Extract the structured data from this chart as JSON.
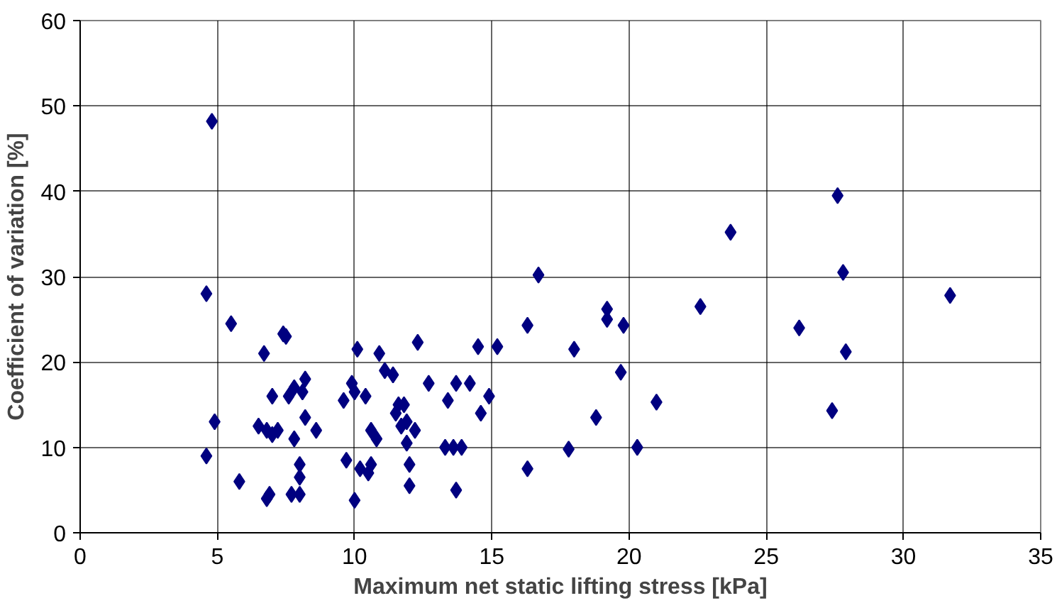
{
  "chart_data": {
    "type": "scatter",
    "xlabel": "Maximum net static lifting stress [kPa]",
    "ylabel": "Coefficient of variation [%]",
    "xlim": [
      0,
      35
    ],
    "xticks": [
      0,
      5,
      10,
      15,
      20,
      25,
      30,
      35
    ],
    "ylim": [
      0,
      60
    ],
    "yticks": [
      0,
      10,
      20,
      30,
      40,
      50,
      60
    ],
    "grid": true,
    "marker": "diamond",
    "series": [
      {
        "color": "#000080",
        "x": [
          4.6,
          4.8,
          4.6,
          4.9,
          5.5,
          5.8,
          6.5,
          6.7,
          6.8,
          6.8,
          6.9,
          7.0,
          7.0,
          7.2,
          7.4,
          7.5,
          7.6,
          7.8,
          7.8,
          7.7,
          8.0,
          8.0,
          8.0,
          8.1,
          8.2,
          8.2,
          8.6,
          9.6,
          9.7,
          9.9,
          10.0,
          10.0,
          10.1,
          10.2,
          10.4,
          10.5,
          10.6,
          10.6,
          10.8,
          10.9,
          11.1,
          11.4,
          11.5,
          11.6,
          11.7,
          11.9,
          11.8,
          11.9,
          12.0,
          12.0,
          12.2,
          12.3,
          12.7,
          13.3,
          13.4,
          13.6,
          13.7,
          13.7,
          13.9,
          14.2,
          14.5,
          14.6,
          14.9,
          15.2,
          16.3,
          16.3,
          16.7,
          17.8,
          18.0,
          18.8,
          19.2,
          19.2,
          19.8,
          19.7,
          20.3,
          21.0,
          22.6,
          23.7,
          26.2,
          27.4,
          27.6,
          27.8,
          27.9,
          31.7
        ],
        "values": [
          28,
          48.2,
          9,
          13,
          24.5,
          6,
          12.5,
          21,
          12,
          4,
          4.5,
          11.5,
          16,
          12,
          23.3,
          23,
          16,
          17,
          11,
          4.5,
          8,
          6.5,
          4.5,
          16.5,
          18,
          13.5,
          12,
          15.5,
          8.5,
          17.5,
          3.8,
          16.5,
          21.5,
          7.5,
          16,
          7,
          8,
          12,
          11,
          21,
          19,
          18.5,
          14,
          15,
          12.5,
          10.5,
          15,
          13,
          8,
          5.5,
          12,
          22.3,
          17.5,
          10,
          15.5,
          10,
          5,
          17.5,
          10,
          17.5,
          21.8,
          14,
          16,
          21.8,
          24.3,
          7.5,
          30.2,
          9.8,
          21.5,
          13.5,
          26.2,
          25,
          24.3,
          18.8,
          10,
          15.3,
          26.5,
          35.2,
          24,
          14.3,
          39.5,
          30.5,
          21.2,
          27.8
        ]
      }
    ]
  }
}
